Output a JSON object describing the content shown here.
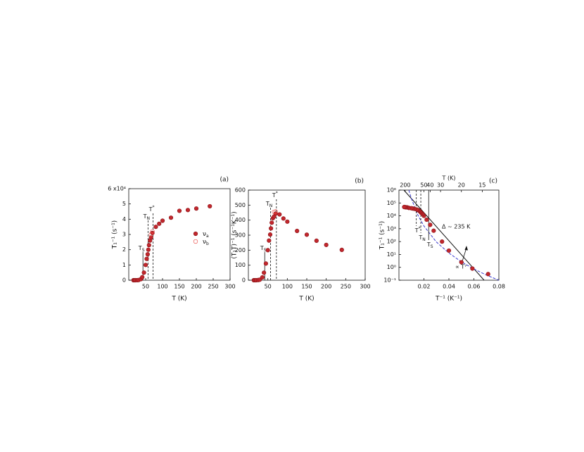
{
  "chart_data": [
    {
      "type": "scatter",
      "panel_label": "(a)",
      "xlabel": "T (K)",
      "ylabel": "T₁⁻¹ (s⁻¹)",
      "xlim": [
        0,
        300
      ],
      "ylim": [
        0,
        60000
      ],
      "xticks": [
        50,
        100,
        150,
        200,
        250,
        300
      ],
      "yticks": [
        0,
        {
          "value": 10000,
          "label": "1"
        },
        {
          "value": 20000,
          "label": "2"
        },
        {
          "value": 30000,
          "label": "3"
        },
        {
          "value": 40000,
          "label": "4"
        },
        {
          "value": 50000,
          "label": "5"
        },
        {
          "value": 60000,
          "label": "6 x10⁴"
        }
      ],
      "series": [
        {
          "name": "νa",
          "color": "#c1272d",
          "marker": "filled",
          "x": [
            14,
            17,
            20,
            25,
            29,
            36,
            40,
            45,
            50,
            53,
            56,
            58,
            60,
            63,
            66,
            70,
            80,
            90,
            100,
            125,
            150,
            175,
            200,
            240
          ],
          "values": [
            0.3,
            0.8,
            2.5,
            20,
            100,
            700,
            2000,
            5000,
            10000,
            14000,
            17000,
            20000,
            23000,
            26000,
            28000,
            31000,
            35000,
            37000,
            39000,
            41000,
            45500,
            46000,
            47000,
            48500
          ]
        },
        {
          "name": "νb",
          "color": "#e8413c",
          "marker": "open",
          "x": [
            66,
            70
          ],
          "values": [
            30000,
            32000
          ]
        }
      ],
      "markers": [
        {
          "label": "TS",
          "x": 42,
          "style": "solid"
        },
        {
          "label": "TN",
          "x": 57,
          "style": "dashed"
        },
        {
          "label": "T*",
          "x": 72,
          "style": "dashed"
        }
      ],
      "legend": "right"
    },
    {
      "type": "scatter",
      "panel_label": "(b)",
      "xlabel": "T (K)",
      "ylabel": "(T₁T)⁻¹ (s⁻¹K⁻¹)",
      "xlim": [
        0,
        300
      ],
      "ylim": [
        0,
        600
      ],
      "xticks": [
        50,
        100,
        150,
        200,
        250,
        300
      ],
      "yticks": [
        0,
        100,
        200,
        300,
        400,
        500,
        600
      ],
      "series": [
        {
          "name": "νa",
          "color": "#c1272d",
          "marker": "filled",
          "x": [
            14,
            17,
            20,
            25,
            29,
            36,
            40,
            45,
            50,
            53,
            56,
            58,
            60,
            63,
            66,
            70,
            80,
            90,
            100,
            125,
            150,
            175,
            200,
            240
          ],
          "values": [
            0,
            0,
            0,
            1,
            3,
            19,
            50,
            111,
            200,
            264,
            304,
            345,
            383,
            413,
            424,
            443,
            438,
            411,
            390,
            328,
            303,
            263,
            235,
            202
          ]
        },
        {
          "name": "νb",
          "color": "#e8413c",
          "marker": "open",
          "x": [
            66,
            70
          ],
          "values": [
            455,
            457
          ]
        }
      ],
      "markers": [
        {
          "label": "TS",
          "x": 42,
          "style": "solid"
        },
        {
          "label": "TN",
          "x": 57,
          "style": "dashed"
        },
        {
          "label": "T*",
          "x": 72,
          "style": "dashed"
        }
      ]
    },
    {
      "type": "scatter",
      "panel_label": "(c)",
      "xlabel": "T⁻¹ (K⁻¹)",
      "ylabel": "T₁⁻¹ (s⁻¹)",
      "x2label": "T (K)",
      "xlim": [
        0,
        0.08
      ],
      "ylim": [
        0.1,
        1000000
      ],
      "yscale": "log",
      "xticks": [
        0.02,
        0.04,
        0.06,
        0.08
      ],
      "x2ticks": [
        {
          "value": 0.005,
          "label": "200"
        },
        {
          "value": 0.02,
          "label": "50"
        },
        {
          "value": 0.025,
          "label": "40"
        },
        {
          "value": 0.0333,
          "label": "30"
        },
        {
          "value": 0.05,
          "label": "20"
        },
        {
          "value": 0.0667,
          "label": "15"
        }
      ],
      "yticks": [
        {
          "value": 0.1,
          "label": "10⁻¹"
        },
        {
          "value": 1,
          "label": "10⁰"
        },
        {
          "value": 10,
          "label": "10¹"
        },
        {
          "value": 100,
          "label": "10²"
        },
        {
          "value": 1000,
          "label": "10³"
        },
        {
          "value": 10000,
          "label": "10⁴"
        },
        {
          "value": 100000,
          "label": "10⁵"
        },
        {
          "value": 1000000,
          "label": "10⁶"
        }
      ],
      "series": [
        {
          "name": "νa",
          "color": "#c1272d",
          "marker": "filled",
          "x": [
            0.0714,
            0.0588,
            0.05,
            0.04,
            0.0345,
            0.0278,
            0.025,
            0.0222,
            0.02,
            0.0189,
            0.0179,
            0.0172,
            0.0167,
            0.0159,
            0.0152,
            0.0143,
            0.0125,
            0.0111,
            0.01,
            0.008,
            0.0067,
            0.0057,
            0.005,
            0.0042
          ],
          "values": [
            0.3,
            0.8,
            2.5,
            20,
            100,
            700,
            2000,
            5000,
            10000,
            14000,
            17000,
            20000,
            23000,
            26000,
            28000,
            31000,
            35000,
            37000,
            39000,
            41000,
            45500,
            46000,
            47000,
            48500
          ]
        }
      ],
      "markers": [
        {
          "label": "T*",
          "x": 0.0139,
          "style": "dashed"
        },
        {
          "label": "TN",
          "x": 0.0175,
          "style": "dashed"
        },
        {
          "label": "TS",
          "x": 0.0238,
          "style": "solid"
        }
      ],
      "annotations": [
        {
          "text": "Δ ~ 235 K"
        },
        {
          "text": "∝ T⁷"
        }
      ]
    }
  ]
}
